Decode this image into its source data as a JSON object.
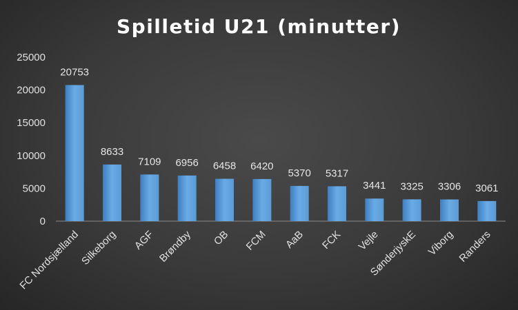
{
  "chart_data": {
    "type": "bar",
    "title": "Spilletid U21 (minutter)",
    "xlabel": "",
    "ylabel": "",
    "categories": [
      "FC Nordsjælland",
      "Silkeborg",
      "AGF",
      "Brøndby",
      "OB",
      "FCM",
      "AaB",
      "FCK",
      "Vejle",
      "SønderjyskE",
      "Viborg",
      "Randers"
    ],
    "values": [
      20753,
      8633,
      7109,
      6956,
      6458,
      6420,
      5370,
      5317,
      3441,
      3325,
      3306,
      3061
    ],
    "yticks": [
      "0",
      "5000",
      "10000",
      "15000",
      "20000",
      "25000"
    ],
    "ylim": [
      0,
      25000
    ],
    "grid": false,
    "legend": "none",
    "bar_color": "#5b9bd5",
    "bar_color_light": "#6aaae6",
    "bar_color_dark": "#3f7fbf"
  }
}
